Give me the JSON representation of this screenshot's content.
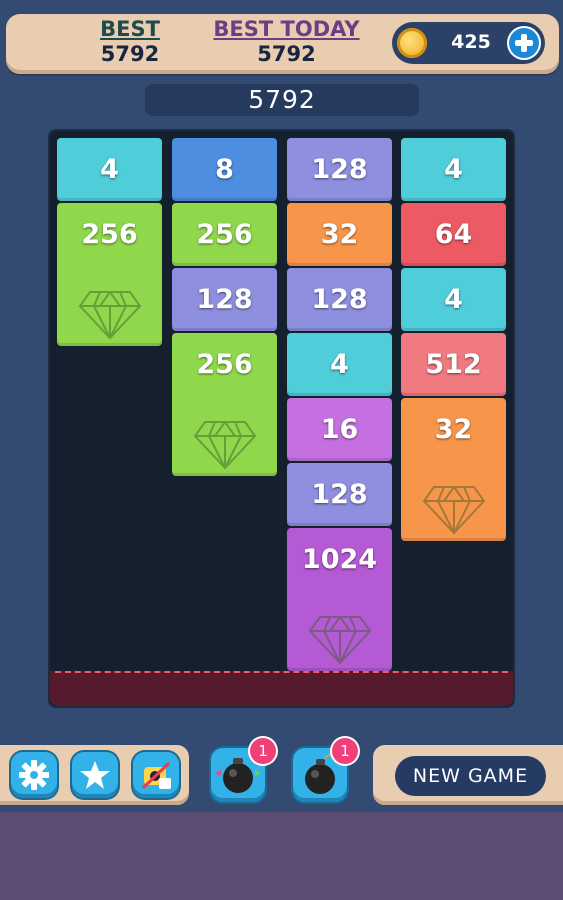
{
  "header": {
    "best_label": "BEST",
    "best_value": "5792",
    "best_today_label": "BEST TODAY",
    "best_today_value": "5792",
    "coins": "425"
  },
  "score": "5792",
  "board": {
    "columns": [
      {
        "tiles": [
          {
            "value": "4",
            "color": "#4fcdd9"
          },
          {
            "value": "256",
            "color": "#8fd84c",
            "gem": true
          }
        ]
      },
      {
        "tiles": [
          {
            "value": "8",
            "color": "#4d8ee0"
          },
          {
            "value": "256",
            "color": "#8fd84c"
          },
          {
            "value": "128",
            "color": "#8f8fe0"
          },
          {
            "value": "256",
            "color": "#8fd84c",
            "gem": true
          }
        ]
      },
      {
        "tiles": [
          {
            "value": "128",
            "color": "#8f8fe0"
          },
          {
            "value": "32",
            "color": "#f7954a"
          },
          {
            "value": "128",
            "color": "#8f8fe0"
          },
          {
            "value": "4",
            "color": "#4fcdd9"
          },
          {
            "value": "16",
            "color": "#c470e0"
          },
          {
            "value": "128",
            "color": "#8f8fe0"
          },
          {
            "value": "1024",
            "color": "#b45ad4",
            "gem": true
          }
        ]
      },
      {
        "tiles": [
          {
            "value": "4",
            "color": "#4fcdd9"
          },
          {
            "value": "64",
            "color": "#ee5a63"
          },
          {
            "value": "4",
            "color": "#4fcdd9"
          },
          {
            "value": "512",
            "color": "#f07a80"
          },
          {
            "value": "32",
            "color": "#f7954a",
            "gem": true
          }
        ]
      }
    ]
  },
  "powerups": [
    {
      "name": "bomb-rainbow",
      "count": "1"
    },
    {
      "name": "bomb",
      "count": "1"
    }
  ],
  "new_game_label": "NEW GAME",
  "colors": {
    "background": "#334a72",
    "panel": "#e8cdb0",
    "board": "#15202f",
    "danger_zone": "#561a2e",
    "button": "#33b2ea"
  }
}
